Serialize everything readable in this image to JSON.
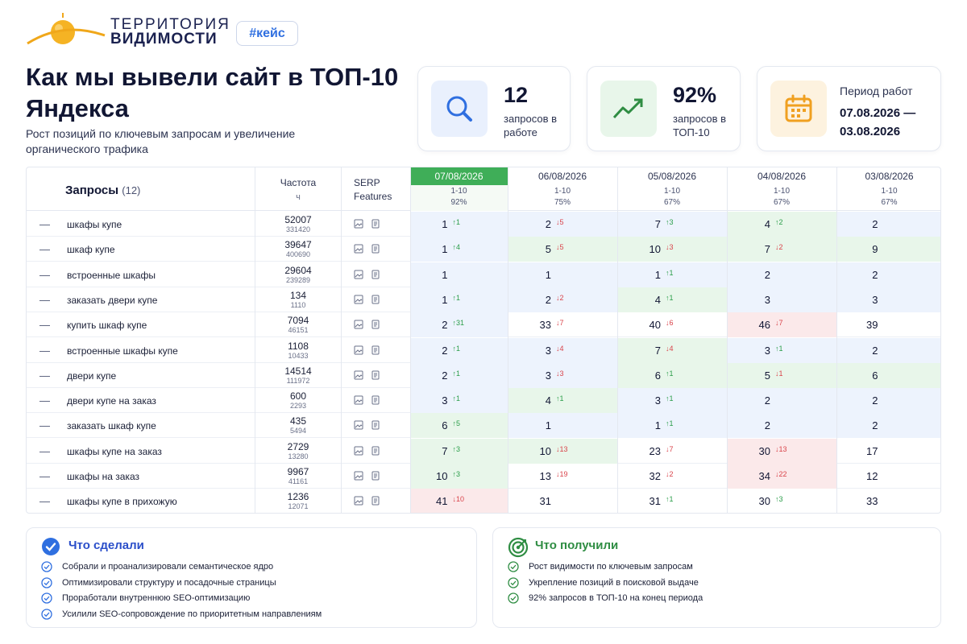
{
  "brand": {
    "line1": "ТЕРРИТОРИЯ",
    "line2": "ВИДИМОСТИ",
    "tag": "#кейс"
  },
  "title": "Как мы вывели сайт в ТОП-10 Яндекса",
  "subtitle": "Рост позиций по ключевым запросам и увеличение органического трафика",
  "stats": {
    "queries": {
      "value": "12",
      "label": "запросов в работе",
      "icon": "search-icon"
    },
    "top10": {
      "value": "92%",
      "label": "запросов в ТОП-10",
      "icon": "trend-up-icon"
    },
    "period": {
      "label": "Период работ",
      "value": "07.08.2026 — 03.08.2026",
      "icon": "calendar-icon"
    }
  },
  "table": {
    "header": {
      "queries_label": "Запросы",
      "queries_count": "(12)",
      "freq_label": "Частота",
      "freq_sub": "ч",
      "serp_label": "SERP Features"
    },
    "dates": [
      {
        "date": "07/08/2026",
        "range": "1-10",
        "percent": "92%",
        "active": true
      },
      {
        "date": "06/08/2026",
        "range": "1-10",
        "percent": "75%",
        "active": false
      },
      {
        "date": "05/08/2026",
        "range": "1-10",
        "percent": "67%",
        "active": false
      },
      {
        "date": "04/08/2026",
        "range": "1-10",
        "percent": "67%",
        "active": false
      },
      {
        "date": "03/08/2026",
        "range": "1-10",
        "percent": "67%",
        "active": false
      }
    ],
    "rows": [
      {
        "query": "шкафы купе",
        "freq": "52007",
        "freq_exact": "331420",
        "cells": [
          {
            "pos": "1",
            "ch": "↑1",
            "dir": "up",
            "bg": "blue"
          },
          {
            "pos": "2",
            "ch": "↓5",
            "dir": "down",
            "bg": "blue"
          },
          {
            "pos": "7",
            "ch": "↑3",
            "dir": "up",
            "bg": "blue"
          },
          {
            "pos": "4",
            "ch": "↑2",
            "dir": "up",
            "bg": "green"
          },
          {
            "pos": "2",
            "ch": "",
            "dir": "",
            "bg": "blue"
          }
        ]
      },
      {
        "query": "шкаф купе",
        "freq": "39647",
        "freq_exact": "400690",
        "cells": [
          {
            "pos": "1",
            "ch": "↑4",
            "dir": "up",
            "bg": "blue"
          },
          {
            "pos": "5",
            "ch": "↓5",
            "dir": "down",
            "bg": "green"
          },
          {
            "pos": "10",
            "ch": "↓3",
            "dir": "down",
            "bg": "green"
          },
          {
            "pos": "7",
            "ch": "↓2",
            "dir": "down",
            "bg": "green"
          },
          {
            "pos": "9",
            "ch": "",
            "dir": "",
            "bg": "green"
          }
        ]
      },
      {
        "query": "встроенные шкафы",
        "freq": "29604",
        "freq_exact": "239289",
        "cells": [
          {
            "pos": "1",
            "ch": "",
            "dir": "",
            "bg": "blue"
          },
          {
            "pos": "1",
            "ch": "",
            "dir": "",
            "bg": "blue"
          },
          {
            "pos": "1",
            "ch": "↑1",
            "dir": "up",
            "bg": "blue"
          },
          {
            "pos": "2",
            "ch": "",
            "dir": "",
            "bg": "blue"
          },
          {
            "pos": "2",
            "ch": "",
            "dir": "",
            "bg": "blue"
          }
        ]
      },
      {
        "query": "заказать двери купе",
        "freq": "134",
        "freq_exact": "1110",
        "cells": [
          {
            "pos": "1",
            "ch": "↑1",
            "dir": "up",
            "bg": "blue"
          },
          {
            "pos": "2",
            "ch": "↓2",
            "dir": "down",
            "bg": "blue"
          },
          {
            "pos": "4",
            "ch": "↑1",
            "dir": "up",
            "bg": "green"
          },
          {
            "pos": "3",
            "ch": "",
            "dir": "",
            "bg": "blue"
          },
          {
            "pos": "3",
            "ch": "",
            "dir": "",
            "bg": "blue"
          }
        ]
      },
      {
        "query": "купить шкаф купе",
        "freq": "7094",
        "freq_exact": "46151",
        "cells": [
          {
            "pos": "2",
            "ch": "↑31",
            "dir": "up",
            "bg": "blue"
          },
          {
            "pos": "33",
            "ch": "↓7",
            "dir": "down",
            "bg": "none"
          },
          {
            "pos": "40",
            "ch": "↓6",
            "dir": "down",
            "bg": "none"
          },
          {
            "pos": "46",
            "ch": "↓7",
            "dir": "down",
            "bg": "red"
          },
          {
            "pos": "39",
            "ch": "",
            "dir": "",
            "bg": "none"
          }
        ]
      },
      {
        "query": "встроенные шкафы купе",
        "freq": "1108",
        "freq_exact": "10433",
        "cells": [
          {
            "pos": "2",
            "ch": "↑1",
            "dir": "up",
            "bg": "blue"
          },
          {
            "pos": "3",
            "ch": "↓4",
            "dir": "down",
            "bg": "blue"
          },
          {
            "pos": "7",
            "ch": "↓4",
            "dir": "down",
            "bg": "green"
          },
          {
            "pos": "3",
            "ch": "↑1",
            "dir": "up",
            "bg": "blue"
          },
          {
            "pos": "2",
            "ch": "",
            "dir": "",
            "bg": "blue"
          }
        ]
      },
      {
        "query": "двери купе",
        "freq": "14514",
        "freq_exact": "111972",
        "cells": [
          {
            "pos": "2",
            "ch": "↑1",
            "dir": "up",
            "bg": "blue"
          },
          {
            "pos": "3",
            "ch": "↓3",
            "dir": "down",
            "bg": "blue"
          },
          {
            "pos": "6",
            "ch": "↑1",
            "dir": "up",
            "bg": "green"
          },
          {
            "pos": "5",
            "ch": "↓1",
            "dir": "down",
            "bg": "green"
          },
          {
            "pos": "6",
            "ch": "",
            "dir": "",
            "bg": "green"
          }
        ]
      },
      {
        "query": "двери купе на заказ",
        "freq": "600",
        "freq_exact": "2293",
        "cells": [
          {
            "pos": "3",
            "ch": "↑1",
            "dir": "up",
            "bg": "blue"
          },
          {
            "pos": "4",
            "ch": "↑1",
            "dir": "up",
            "bg": "green"
          },
          {
            "pos": "3",
            "ch": "↑1",
            "dir": "up",
            "bg": "blue"
          },
          {
            "pos": "2",
            "ch": "",
            "dir": "",
            "bg": "blue"
          },
          {
            "pos": "2",
            "ch": "",
            "dir": "",
            "bg": "blue"
          }
        ]
      },
      {
        "query": "заказать шкаф купе",
        "freq": "435",
        "freq_exact": "5494",
        "cells": [
          {
            "pos": "6",
            "ch": "↑5",
            "dir": "up",
            "bg": "green"
          },
          {
            "pos": "1",
            "ch": "",
            "dir": "",
            "bg": "blue"
          },
          {
            "pos": "1",
            "ch": "↑1",
            "dir": "up",
            "bg": "blue"
          },
          {
            "pos": "2",
            "ch": "",
            "dir": "",
            "bg": "blue"
          },
          {
            "pos": "2",
            "ch": "",
            "dir": "",
            "bg": "blue"
          }
        ]
      },
      {
        "query": "шкафы купе на заказ",
        "freq": "2729",
        "freq_exact": "13280",
        "cells": [
          {
            "pos": "7",
            "ch": "↑3",
            "dir": "up",
            "bg": "green"
          },
          {
            "pos": "10",
            "ch": "↓13",
            "dir": "down",
            "bg": "green"
          },
          {
            "pos": "23",
            "ch": "↓7",
            "dir": "down",
            "bg": "none"
          },
          {
            "pos": "30",
            "ch": "↓13",
            "dir": "down",
            "bg": "red"
          },
          {
            "pos": "17",
            "ch": "",
            "dir": "",
            "bg": "none"
          }
        ]
      },
      {
        "query": "шкафы на заказ",
        "freq": "9967",
        "freq_exact": "41161",
        "cells": [
          {
            "pos": "10",
            "ch": "↑3",
            "dir": "up",
            "bg": "green"
          },
          {
            "pos": "13",
            "ch": "↓19",
            "dir": "down",
            "bg": "none"
          },
          {
            "pos": "32",
            "ch": "↓2",
            "dir": "down",
            "bg": "none"
          },
          {
            "pos": "34",
            "ch": "↓22",
            "dir": "down",
            "bg": "red"
          },
          {
            "pos": "12",
            "ch": "",
            "dir": "",
            "bg": "none"
          }
        ]
      },
      {
        "query": "шкафы купе в прихожую",
        "freq": "1236",
        "freq_exact": "12071",
        "cells": [
          {
            "pos": "41",
            "ch": "↓10",
            "dir": "down",
            "bg": "red"
          },
          {
            "pos": "31",
            "ch": "",
            "dir": "",
            "bg": "none"
          },
          {
            "pos": "31",
            "ch": "↑1",
            "dir": "up",
            "bg": "none"
          },
          {
            "pos": "30",
            "ch": "↑3",
            "dir": "up",
            "bg": "none"
          },
          {
            "pos": "33",
            "ch": "",
            "dir": "",
            "bg": "none"
          }
        ]
      }
    ]
  },
  "panels": {
    "done": {
      "title": "Что сделали",
      "items": [
        "Собрали и проанализировали семантическое ядро",
        "Оптимизировали структуру и посадочные страницы",
        "Проработали внутреннюю SEO-оптимизацию",
        "Усилили SEO-сопровождение по приоритетным направлениям"
      ]
    },
    "result": {
      "title": "Что получили",
      "items": [
        "Рост видимости по ключевым запросам",
        "Укрепление позиций в поисковой выдаче",
        "92% запросов в ТОП-10 на конец периода"
      ]
    }
  },
  "colors": {
    "accent_blue": "#2f6fe0",
    "accent_green": "#3fae58",
    "logo_sun": "#f5b324",
    "down_red": "#d9434a"
  }
}
